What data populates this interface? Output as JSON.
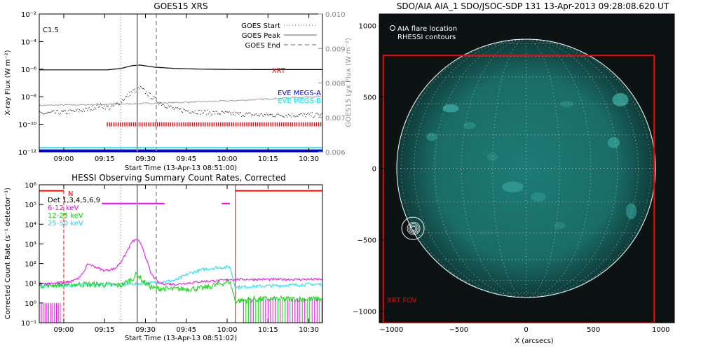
{
  "colors": {
    "xrt": "#ff0000",
    "eve_megs_a": "#0000ff",
    "eve_megs_b": "#00e5ff",
    "goes_flux": "#000000",
    "lyx": "#a0a0a0",
    "hessi_6_12": "#ff00ff",
    "hessi_12_25": "#00dd00",
    "hessi_25_50": "#00e5ff",
    "aia_disk": "#1f7d78",
    "aia_background": "#0c1212"
  },
  "goes_panel": {
    "title": "GOES15 XRS",
    "class_label": "C1.5",
    "ylabel_left": "X-ray Flux (W m⁻²)",
    "ylabel_right": "GOES15 Lyx Flux (W m⁻²)",
    "xlabel": "Start Time (13-Apr-13 08:51:00)",
    "legend": [
      "GOES Start",
      "GOES Peak",
      "GOES End"
    ],
    "xrt_label": "XRT",
    "eve_a_label": "EVE MEGS-A",
    "eve_b_label": "EVE MEGS-B"
  },
  "hessi_panel": {
    "title": "HESSI Observing Summary Count Rates, Corrected",
    "ylabel": "Corrected Count Rate (s⁻¹ detector⁻¹)",
    "xlabel": "Start Time (13-Apr-13 08:51:02)",
    "detectors": "Det 1,3,4,5,6,9",
    "bands": [
      "6-12 keV",
      "12-25 keV",
      "25-50 keV"
    ],
    "flag_n": "N"
  },
  "aia_panel": {
    "title": "SDO/AIA AIA_1 SDO/JSOC-SDP 131 13-Apr-2013 09:28:08.620 UT",
    "legend_flare": "AIA flare location",
    "legend_rhessi": "RHESSI contours",
    "fov_label": "XRT FOV",
    "xlabel": "X (arcsecs)"
  },
  "chart_data": [
    {
      "type": "line",
      "title": "GOES15 XRS",
      "xlabel": "Start Time (13-Apr-13 08:51:00)",
      "ylabel": "X-ray Flux (W m⁻²)",
      "y2label": "GOES15 Lyx Flux (W m⁻²)",
      "ylim": [
        1e-12,
        0.01
      ],
      "y_scale": "log",
      "y2lim": [
        0.006,
        0.01
      ],
      "xlim_minutes": [
        0,
        104
      ],
      "x_ticks": [
        "09:00",
        "09:15",
        "09:30",
        "09:45",
        "10:00",
        "10:15",
        "10:30"
      ],
      "x_tick_minutes": [
        9,
        24,
        39,
        54,
        69,
        84,
        99
      ],
      "y_ticks": [
        "10⁻¹²",
        "10⁻¹⁰",
        "10⁻⁸",
        "10⁻⁶",
        "10⁻⁴",
        "10⁻²"
      ],
      "y_tick_exps": [
        -12,
        -10,
        -8,
        -6,
        -4,
        -2
      ],
      "y2_ticks": [
        "0.006",
        "0.007",
        "0.008",
        "0.009",
        "0.010"
      ],
      "y2_tick_vals": [
        0.006,
        0.007,
        0.008,
        0.009,
        0.01
      ],
      "vlines": [
        {
          "name": "GOES Start",
          "x": 30
        },
        {
          "name": "GOES Peak",
          "x": 36
        },
        {
          "name": "GOES End",
          "x": 43
        }
      ],
      "series": [
        {
          "name": "goes_long",
          "x": [
            0,
            15,
            25,
            30,
            34,
            37,
            42,
            50,
            60,
            70,
            80,
            90,
            100,
            104
          ],
          "exp": [
            -6.05,
            -6.05,
            -6.05,
            -5.95,
            -5.75,
            -5.7,
            -5.85,
            -5.95,
            -6.0,
            -6.02,
            -6.03,
            -6.03,
            -6.03,
            -6.03
          ]
        },
        {
          "name": "goes_short",
          "x": [
            0,
            10,
            18,
            22,
            26,
            30,
            34,
            37,
            40,
            44,
            50,
            60,
            70,
            80,
            90,
            100,
            104
          ],
          "exp": [
            -9.2,
            -9.1,
            -8.9,
            -8.6,
            -8.8,
            -8.3,
            -7.6,
            -7.35,
            -7.8,
            -8.4,
            -8.9,
            -9.1,
            -9.2,
            -9.3,
            -9.3,
            -9.3,
            -9.3
          ]
        },
        {
          "name": "lyx",
          "x": [
            0,
            20,
            36,
            50,
            60,
            70,
            80,
            90,
            100,
            104
          ],
          "value": [
            0.00735,
            0.00737,
            0.0074,
            0.00743,
            0.00746,
            0.00748,
            0.00752,
            0.00756,
            0.0076,
            0.00761
          ]
        },
        {
          "name": "EVE MEGS-A",
          "x": [
            0,
            104
          ],
          "exp": [
            -11.9,
            -11.9
          ]
        },
        {
          "name": "EVE MEGS-B",
          "x": [
            0,
            104
          ],
          "exp": [
            -11.85,
            -11.85
          ]
        }
      ],
      "xrt_coverage_minutes": [
        25,
        104
      ]
    },
    {
      "type": "line",
      "title": "HESSI Observing Summary Count Rates, Corrected",
      "xlabel": "Start Time (13-Apr-13 08:51:02)",
      "ylabel": "Corrected Count Rate (s⁻¹ detector⁻¹)",
      "ylim": [
        0.1,
        1000000.0
      ],
      "y_scale": "log",
      "xlim_minutes": [
        0,
        104
      ],
      "x_ticks": [
        "09:00",
        "09:15",
        "09:30",
        "09:45",
        "10:00",
        "10:15",
        "10:30"
      ],
      "x_tick_minutes": [
        9,
        24,
        39,
        54,
        69,
        84,
        99
      ],
      "y_ticks": [
        "10⁻¹",
        "10⁰",
        "10¹",
        "10²",
        "10³",
        "10⁴",
        "10⁵",
        "10⁶"
      ],
      "y_tick_exps": [
        -1,
        0,
        1,
        2,
        3,
        4,
        5,
        6
      ],
      "vlines": [
        {
          "name": "GOES Start",
          "x": 30
        },
        {
          "name": "GOES Peak",
          "x": 36
        },
        {
          "name": "GOES End",
          "x": 43
        }
      ],
      "series": [
        {
          "name": "6-12 keV",
          "x": [
            0,
            5,
            10,
            15,
            18,
            21,
            24,
            28,
            31,
            34,
            36,
            38,
            41,
            44,
            50,
            60,
            68,
            70
          ],
          "exp": [
            0.95,
            1.0,
            1.05,
            1.3,
            2.0,
            1.8,
            1.65,
            1.75,
            2.3,
            3.1,
            3.25,
            2.8,
            1.5,
            1.0,
            0.95,
            1.1,
            1.15,
            1.2
          ]
        },
        {
          "name": "12-25 keV",
          "x": [
            0,
            10,
            20,
            30,
            34,
            36,
            38,
            42,
            50,
            60,
            70,
            72,
            80,
            90,
            104
          ],
          "exp": [
            0.9,
            0.95,
            0.95,
            0.9,
            1.2,
            1.5,
            1.1,
            0.75,
            0.7,
            0.75,
            1.1,
            0.1,
            0.2,
            0.2,
            0.2
          ]
        },
        {
          "name": "25-50 keV",
          "x": [
            0,
            10,
            20,
            30,
            40,
            50,
            55,
            60,
            65,
            68,
            70,
            72,
            80,
            90,
            100,
            104
          ],
          "exp": [
            0.85,
            0.9,
            0.95,
            0.95,
            1.0,
            1.15,
            1.5,
            1.7,
            1.8,
            1.8,
            1.85,
            0.8,
            0.85,
            0.9,
            0.95,
            0.95
          ]
        }
      ],
      "flags": [
        {
          "name": "saa_left",
          "x": [
            0,
            9
          ],
          "exp": 5.7
        },
        {
          "name": "attenuator",
          "x": [
            23,
            46
          ],
          "exp": 5.05
        },
        {
          "name": "attenuator2",
          "x": [
            67,
            70
          ],
          "exp": 5.05
        },
        {
          "name": "night",
          "x": [
            72,
            104
          ],
          "exp": 5.7
        }
      ]
    },
    {
      "type": "heatmap",
      "title": "SDO/AIA AIA_1 SDO/JSOC-SDP 131 13-Apr-2013 09:28:08.620 UT",
      "xlabel": "X (arcsecs)",
      "x_ticks": [
        "−1000",
        "−500",
        "0",
        "500",
        "1000"
      ],
      "x_tick_vals": [
        -1000,
        -500,
        0,
        500,
        1000
      ],
      "y_ticks": [
        "1000",
        "500",
        "0",
        "−500",
        "−1000"
      ],
      "y_tick_vals": [
        1000,
        500,
        0,
        -500,
        -1000
      ],
      "xlim": [
        -1090,
        1100
      ],
      "ylim": [
        -1080,
        1080
      ],
      "solar_radius": 960,
      "flare_location": [
        -840,
        -420
      ],
      "xrt_fov": {
        "x": [
          -1060,
          950
        ],
        "y": [
          -1080,
          790
        ]
      }
    }
  ]
}
